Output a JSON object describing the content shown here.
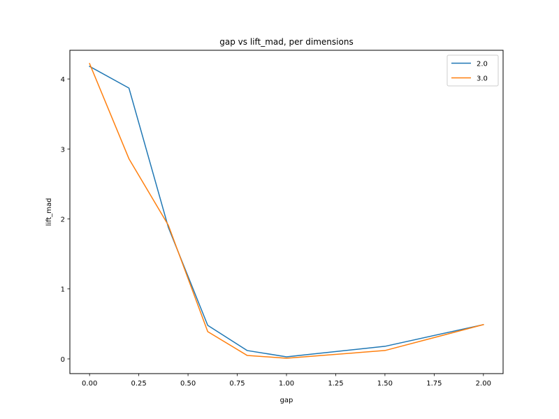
{
  "chart_data": {
    "type": "line",
    "title": "gap vs lift_mad, per dimensions",
    "xlabel": "gap",
    "ylabel": "lift_mad",
    "xlim": [
      -0.1,
      2.1
    ],
    "ylim": [
      -0.21,
      4.41
    ],
    "xticks": [
      {
        "value": 0.0,
        "label": "0.00"
      },
      {
        "value": 0.25,
        "label": "0.25"
      },
      {
        "value": 0.5,
        "label": "0.50"
      },
      {
        "value": 0.75,
        "label": "0.75"
      },
      {
        "value": 1.0,
        "label": "1.00"
      },
      {
        "value": 1.25,
        "label": "1.25"
      },
      {
        "value": 1.5,
        "label": "1.50"
      },
      {
        "value": 1.75,
        "label": "1.75"
      },
      {
        "value": 2.0,
        "label": "2.00"
      }
    ],
    "yticks": [
      {
        "value": 0,
        "label": "0"
      },
      {
        "value": 1,
        "label": "1"
      },
      {
        "value": 2,
        "label": "2"
      },
      {
        "value": 3,
        "label": "3"
      },
      {
        "value": 4,
        "label": "4"
      }
    ],
    "grid": false,
    "legend_position": "top-right",
    "series": [
      {
        "name": "2.0",
        "color": "#1f77b4",
        "x": [
          0.0,
          0.2,
          0.4,
          0.6,
          0.8,
          1.0,
          1.5,
          2.0
        ],
        "y": [
          4.18,
          3.87,
          1.88,
          0.48,
          0.12,
          0.03,
          0.18,
          0.49
        ]
      },
      {
        "name": "3.0",
        "color": "#ff7f0e",
        "x": [
          0.0,
          0.2,
          0.4,
          0.6,
          0.8,
          1.0,
          1.5,
          2.0
        ],
        "y": [
          4.22,
          2.86,
          1.91,
          0.39,
          0.05,
          0.01,
          0.12,
          0.49
        ]
      }
    ]
  }
}
